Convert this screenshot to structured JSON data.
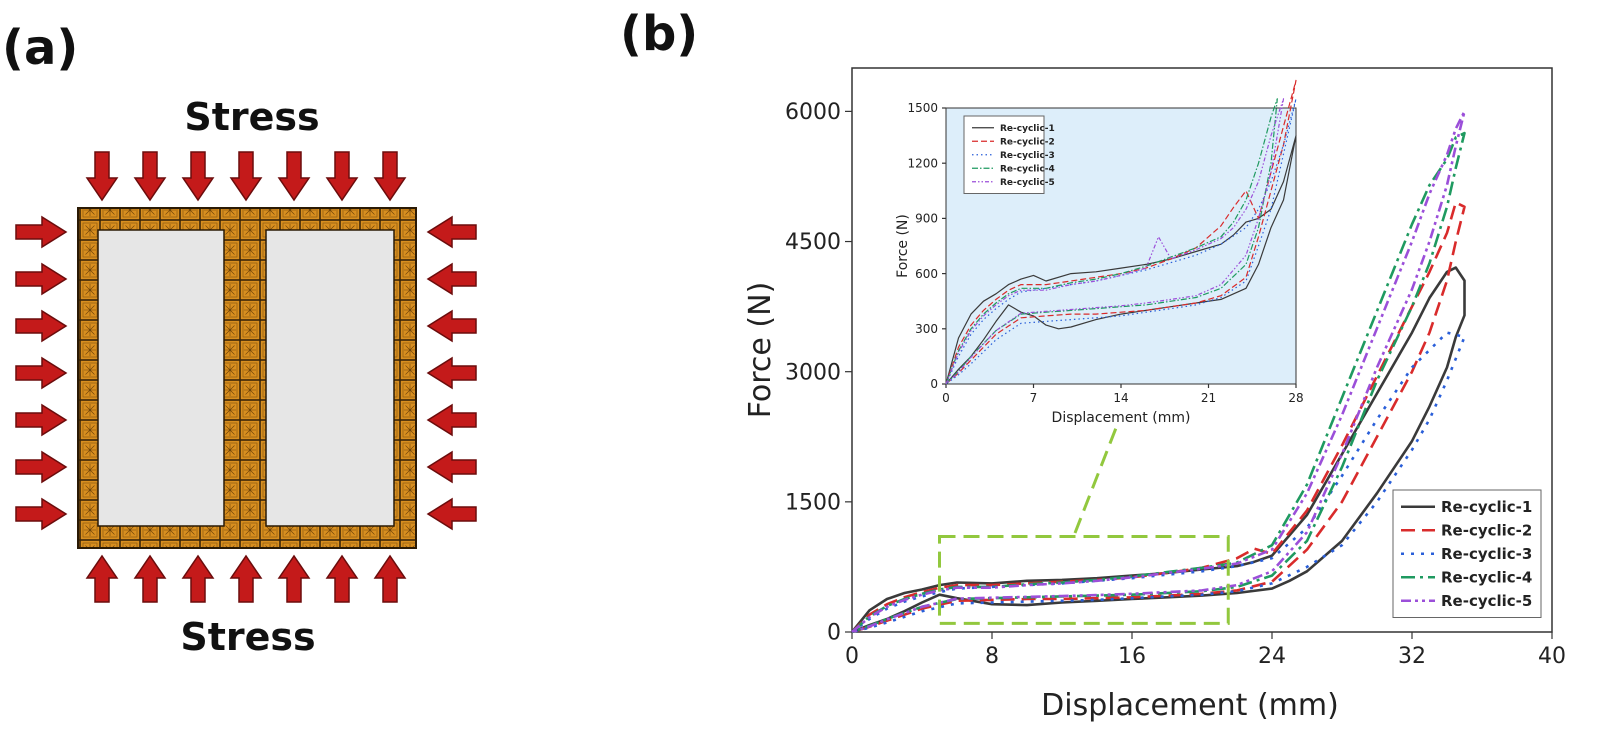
{
  "panel_a": {
    "label": "(a)",
    "top_stress": "Stress",
    "bottom_stress": "Stress",
    "arrow_color": "#c41a1a",
    "cell_color": "#d98f1f",
    "void_color": "#e6e6e6"
  },
  "panel_b": {
    "label": "(b)"
  },
  "chart_data": [
    {
      "type": "line",
      "role": "main",
      "xlabel": "Displacement (mm)",
      "ylabel": "Force (N)",
      "xlim": [
        0,
        40
      ],
      "ylim": [
        0,
        6500
      ],
      "xticks": [
        "0",
        "8",
        "16",
        "24",
        "32",
        "40"
      ],
      "yticks": [
        "0",
        "1500",
        "3000",
        "4500",
        "6000"
      ],
      "legend_position": "bottom-right",
      "zoom_box": {
        "x": [
          5,
          21.5
        ],
        "y": [
          100,
          1100
        ]
      },
      "series": [
        {
          "name": "Re-cyclic-1",
          "color": "#3a3a3a",
          "dash": "",
          "x": [
            0,
            1,
            2,
            3,
            4,
            5,
            6,
            8,
            10,
            12,
            14,
            16,
            18,
            20,
            22,
            23,
            24,
            26,
            28,
            30,
            32,
            33,
            34,
            34.5,
            35,
            35,
            34.5,
            34,
            33,
            32,
            30,
            28,
            26,
            25,
            24,
            22,
            20,
            18,
            16,
            14,
            12,
            10,
            8,
            6,
            5,
            4,
            3,
            2,
            1,
            0
          ],
          "y": [
            0,
            250,
            380,
            450,
            490,
            540,
            570,
            560,
            590,
            600,
            620,
            650,
            680,
            720,
            760,
            810,
            880,
            1350,
            2050,
            2750,
            3450,
            3850,
            4150,
            4200,
            4050,
            3650,
            3400,
            3050,
            2600,
            2200,
            1600,
            1050,
            700,
            590,
            500,
            450,
            420,
            400,
            380,
            360,
            340,
            310,
            320,
            390,
            430,
            340,
            240,
            150,
            80,
            0
          ]
        },
        {
          "name": "Re-cyclic-2",
          "color": "#d92b2b",
          "dash": "14 7",
          "x": [
            0,
            1,
            2,
            3,
            4,
            5,
            6,
            8,
            10,
            12,
            14,
            16,
            18,
            20,
            22,
            23,
            24,
            26,
            28,
            30,
            32,
            33,
            34,
            34.5,
            35,
            34.5,
            34,
            33,
            32,
            30,
            28,
            26,
            24,
            22,
            20,
            18,
            16,
            14,
            12,
            10,
            8,
            6,
            4,
            2,
            1,
            0
          ],
          "y": [
            0,
            200,
            320,
            400,
            460,
            510,
            540,
            540,
            560,
            580,
            600,
            630,
            680,
            740,
            850,
            960,
            900,
            1400,
            2150,
            2950,
            3750,
            4150,
            4600,
            4950,
            4900,
            4500,
            4050,
            3450,
            3000,
            2250,
            1500,
            950,
            580,
            480,
            440,
            420,
            400,
            390,
            380,
            380,
            370,
            360,
            270,
            130,
            60,
            0
          ]
        },
        {
          "name": "Re-cyclic-3",
          "color": "#2a5fd9",
          "dash": "3 7",
          "x": [
            0,
            1,
            2,
            3,
            4,
            5,
            6,
            8,
            10,
            12,
            14,
            16,
            18,
            20,
            22,
            24,
            26,
            28,
            30,
            32,
            34,
            35,
            34,
            33,
            32,
            30,
            28,
            26,
            24,
            22,
            20,
            18,
            16,
            14,
            12,
            10,
            8,
            6,
            4,
            2,
            1,
            0
          ],
          "y": [
            0,
            150,
            270,
            350,
            410,
            460,
            500,
            520,
            540,
            560,
            590,
            620,
            660,
            700,
            760,
            850,
            1200,
            1800,
            2450,
            3050,
            3450,
            3400,
            2900,
            2450,
            2100,
            1500,
            1000,
            750,
            560,
            470,
            430,
            410,
            390,
            370,
            360,
            350,
            340,
            330,
            240,
            110,
            50,
            0
          ]
        },
        {
          "name": "Re-cyclic-4",
          "color": "#1f9a60",
          "dash": "14 5 3 5",
          "x": [
            0,
            1,
            2,
            3,
            4,
            5,
            6,
            8,
            10,
            12,
            14,
            16,
            18,
            20,
            22,
            24,
            26,
            28,
            30,
            32,
            33,
            34,
            34.5,
            35,
            34.5,
            34,
            33,
            32,
            30,
            28,
            26,
            24,
            22,
            20,
            18,
            16,
            14,
            12,
            10,
            8,
            6,
            4,
            2,
            1,
            0
          ],
          "y": [
            0,
            180,
            300,
            380,
            440,
            490,
            520,
            520,
            550,
            570,
            600,
            640,
            690,
            740,
            800,
            1000,
            1700,
            2700,
            3700,
            4700,
            5150,
            5450,
            5700,
            5750,
            5350,
            4900,
            4250,
            3750,
            2900,
            1900,
            1050,
            650,
            520,
            470,
            450,
            430,
            420,
            410,
            400,
            390,
            380,
            290,
            150,
            70,
            0
          ]
        },
        {
          "name": "Re-cyclic-5",
          "color": "#9b4fd9",
          "dash": "10 4 3 4 3 4",
          "x": [
            0,
            1,
            2,
            3,
            4,
            5,
            6,
            8,
            10,
            12,
            14,
            16,
            18,
            20,
            22,
            24,
            26,
            28,
            30,
            32,
            33,
            34,
            34.5,
            35,
            34.5,
            34,
            33,
            32,
            30,
            28,
            26,
            24,
            22,
            20,
            18,
            16,
            14,
            12,
            10,
            8,
            6,
            4,
            2,
            1,
            0
          ],
          "y": [
            0,
            170,
            290,
            370,
            430,
            480,
            510,
            510,
            540,
            560,
            590,
            630,
            680,
            730,
            790,
            950,
            1600,
            2500,
            3500,
            4500,
            5050,
            5500,
            5800,
            6000,
            5600,
            5150,
            4500,
            3950,
            3050,
            2050,
            1150,
            700,
            540,
            480,
            460,
            440,
            425,
            415,
            405,
            395,
            385,
            290,
            145,
            65,
            0
          ]
        }
      ]
    },
    {
      "type": "line",
      "role": "inset",
      "xlabel": "Displacement (mm)",
      "ylabel": "Force (N)",
      "xlim": [
        0,
        28
      ],
      "ylim": [
        0,
        1500
      ],
      "xticks": [
        "0",
        "7",
        "14",
        "21",
        "28"
      ],
      "yticks": [
        "0",
        "300",
        "600",
        "900",
        "1200",
        "1500"
      ],
      "legend_position": "top-left",
      "background": "#ddeefa",
      "series": [
        {
          "name": "Re-cyclic-1",
          "color": "#3a3a3a",
          "dash": "",
          "x": [
            0,
            1,
            2,
            3,
            4,
            5,
            6,
            7,
            8,
            10,
            12,
            14,
            16,
            18,
            20,
            22,
            23,
            24,
            25,
            26,
            27,
            28,
            27,
            26,
            25,
            24,
            22,
            20,
            18,
            16,
            14,
            12,
            10,
            9,
            8,
            7,
            6,
            5,
            4,
            3,
            2,
            1,
            0
          ],
          "y": [
            0,
            250,
            380,
            450,
            490,
            540,
            570,
            590,
            560,
            600,
            610,
            630,
            650,
            680,
            720,
            760,
            810,
            880,
            900,
            950,
            1100,
            1350,
            1000,
            850,
            650,
            520,
            460,
            440,
            420,
            400,
            380,
            350,
            310,
            300,
            320,
            370,
            390,
            430,
            340,
            240,
            150,
            80,
            0
          ]
        },
        {
          "name": "Re-cyclic-2",
          "color": "#d92b2b",
          "dash": "6 3",
          "x": [
            0,
            1,
            2,
            3,
            4,
            5,
            6,
            8,
            10,
            12,
            14,
            16,
            18,
            20,
            21,
            22,
            23,
            24,
            25,
            26,
            27,
            28,
            27,
            26,
            25,
            24,
            22,
            20,
            18,
            16,
            14,
            12,
            10,
            8,
            6,
            4,
            2,
            1,
            0
          ],
          "y": [
            0,
            200,
            320,
            400,
            460,
            510,
            540,
            540,
            560,
            580,
            600,
            630,
            680,
            740,
            800,
            860,
            960,
            1050,
            900,
            1150,
            1400,
            1650,
            1300,
            1050,
            800,
            580,
            480,
            440,
            420,
            400,
            390,
            380,
            380,
            370,
            360,
            270,
            130,
            60,
            0
          ]
        },
        {
          "name": "Re-cyclic-3",
          "color": "#2a5fd9",
          "dash": "1.5 3",
          "x": [
            0,
            1,
            2,
            3,
            4,
            5,
            6,
            8,
            10,
            12,
            14,
            16,
            18,
            20,
            22,
            24,
            25,
            26,
            27,
            28,
            27,
            26,
            25,
            24,
            22,
            20,
            18,
            16,
            14,
            12,
            10,
            8,
            6,
            4,
            2,
            1,
            0
          ],
          "y": [
            0,
            150,
            270,
            350,
            410,
            460,
            500,
            520,
            540,
            560,
            590,
            620,
            660,
            700,
            760,
            850,
            950,
            1100,
            1300,
            1550,
            1250,
            950,
            750,
            560,
            470,
            430,
            410,
            390,
            370,
            360,
            350,
            340,
            330,
            240,
            110,
            50,
            0
          ]
        },
        {
          "name": "Re-cyclic-4",
          "color": "#1f9a60",
          "dash": "6 2 1.5 2",
          "x": [
            0,
            1,
            2,
            3,
            4,
            5,
            6,
            8,
            10,
            12,
            14,
            16,
            18,
            20,
            22,
            23,
            24,
            25,
            26,
            26.5,
            26,
            25,
            24,
            22,
            20,
            18,
            16,
            14,
            12,
            10,
            8,
            6,
            4,
            2,
            1,
            0
          ],
          "y": [
            0,
            180,
            300,
            380,
            440,
            490,
            520,
            520,
            550,
            570,
            600,
            640,
            690,
            740,
            800,
            880,
            1000,
            1200,
            1450,
            1550,
            1200,
            850,
            650,
            520,
            470,
            450,
            430,
            420,
            410,
            400,
            390,
            380,
            290,
            150,
            70,
            0
          ]
        },
        {
          "name": "Re-cyclic-5",
          "color": "#9b4fd9",
          "dash": "4 2 1.5 2 1.5 2",
          "x": [
            0,
            1,
            2,
            3,
            4,
            5,
            6,
            8,
            10,
            12,
            14,
            16,
            17,
            18,
            20,
            22,
            23,
            24,
            25,
            26,
            27,
            26,
            25,
            24,
            22,
            20,
            18,
            16,
            14,
            12,
            10,
            8,
            6,
            4,
            2,
            1,
            0
          ],
          "y": [
            0,
            170,
            290,
            370,
            430,
            480,
            510,
            510,
            540,
            560,
            590,
            630,
            800,
            680,
            730,
            790,
            850,
            950,
            1100,
            1350,
            1550,
            1150,
            900,
            700,
            540,
            480,
            460,
            440,
            425,
            415,
            405,
            395,
            385,
            290,
            145,
            65,
            0
          ]
        }
      ]
    }
  ]
}
